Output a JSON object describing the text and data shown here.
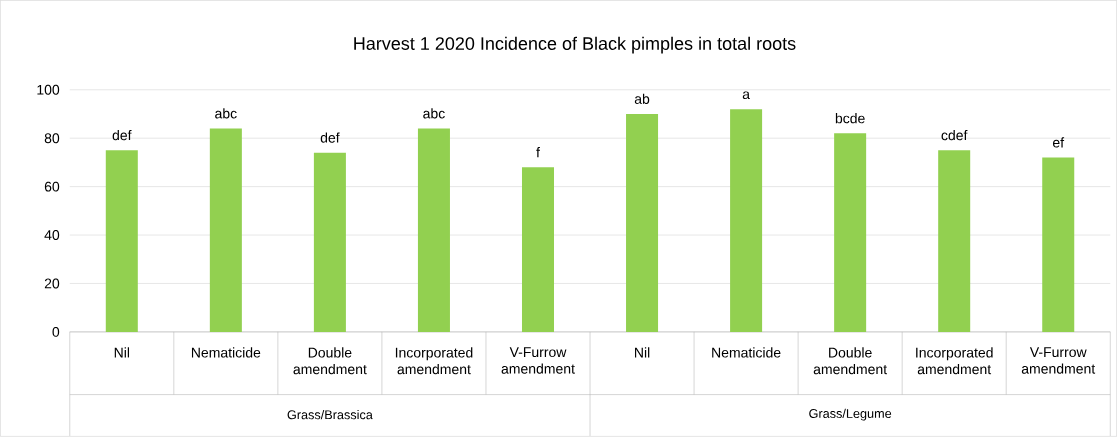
{
  "chart_data": {
    "type": "bar",
    "title": "Harvest 1 2020 Incidence of Black pimples in total roots",
    "categories": [
      "Nil",
      "Nematicide",
      "Double amendment",
      "Incorporated amendment",
      "V-Furrow amendment",
      "Nil",
      "Nematicide",
      "Double amendment",
      "Incorporated amendment",
      "V-Furrow amendment"
    ],
    "values": [
      75,
      84,
      74,
      84,
      68,
      90,
      92,
      82,
      75,
      72
    ],
    "value_labels": [
      "def",
      "abc",
      "def",
      "abc",
      "f",
      "ab",
      "a",
      "bcde",
      "cdef",
      "ef"
    ],
    "color": "#92d050",
    "ylim": [
      0,
      100
    ],
    "yticks": [
      0,
      20,
      40,
      60,
      80,
      100
    ],
    "grid": "y",
    "annotations": [
      "Grass/Brassica",
      "Grass/Legume"
    ]
  }
}
